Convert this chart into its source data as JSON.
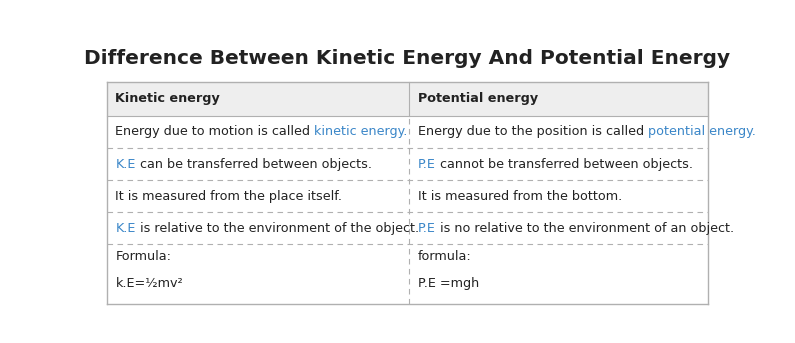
{
  "title": "Difference Between Kinetic Energy And Potential Energy",
  "title_fontsize": 14.5,
  "title_fontweight": "bold",
  "text_color": "#222222",
  "blue_color": "#3a86c8",
  "header_bg": "#eeeeee",
  "fig_bg": "#ffffff",
  "divider_color": "#b0b0b0",
  "col1_header": "Kinetic energy",
  "col2_header": "Potential energy",
  "rows": [
    {
      "col1_parts": [
        {
          "text": "Energy due to motion is called ",
          "color": "#222222"
        },
        {
          "text": "kinetic energy.",
          "color": "#3a86c8"
        }
      ],
      "col2_parts": [
        {
          "text": "Energy due to the position is called ",
          "color": "#222222"
        },
        {
          "text": "potential energy.",
          "color": "#3a86c8"
        }
      ],
      "tall": false
    },
    {
      "col1_parts": [
        {
          "text": "K.E",
          "color": "#3a86c8"
        },
        {
          "text": " can be transferred between objects.",
          "color": "#222222"
        }
      ],
      "col2_parts": [
        {
          "text": "P.E",
          "color": "#3a86c8"
        },
        {
          "text": " cannot be transferred between objects.",
          "color": "#222222"
        }
      ],
      "tall": false
    },
    {
      "col1_parts": [
        {
          "text": "It is measured from the place itself.",
          "color": "#222222"
        }
      ],
      "col2_parts": [
        {
          "text": "It is measured from the bottom.",
          "color": "#222222"
        }
      ],
      "tall": false
    },
    {
      "col1_parts": [
        {
          "text": "K.E",
          "color": "#3a86c8"
        },
        {
          "text": " is relative to the environment of the object.",
          "color": "#222222"
        }
      ],
      "col2_parts": [
        {
          "text": "P.E",
          "color": "#3a86c8"
        },
        {
          "text": " is no relative to the environment of an object.",
          "color": "#222222"
        }
      ],
      "tall": false
    },
    {
      "col1_parts": [
        {
          "text": "Formula:",
          "color": "#222222"
        }
      ],
      "col2_parts": [
        {
          "text": "formula:",
          "color": "#222222"
        }
      ],
      "col1_formula": "k.E=½mv²",
      "col2_formula": "P.E =mgh",
      "tall": true
    }
  ],
  "figsize": [
    7.95,
    3.43
  ],
  "dpi": 100
}
